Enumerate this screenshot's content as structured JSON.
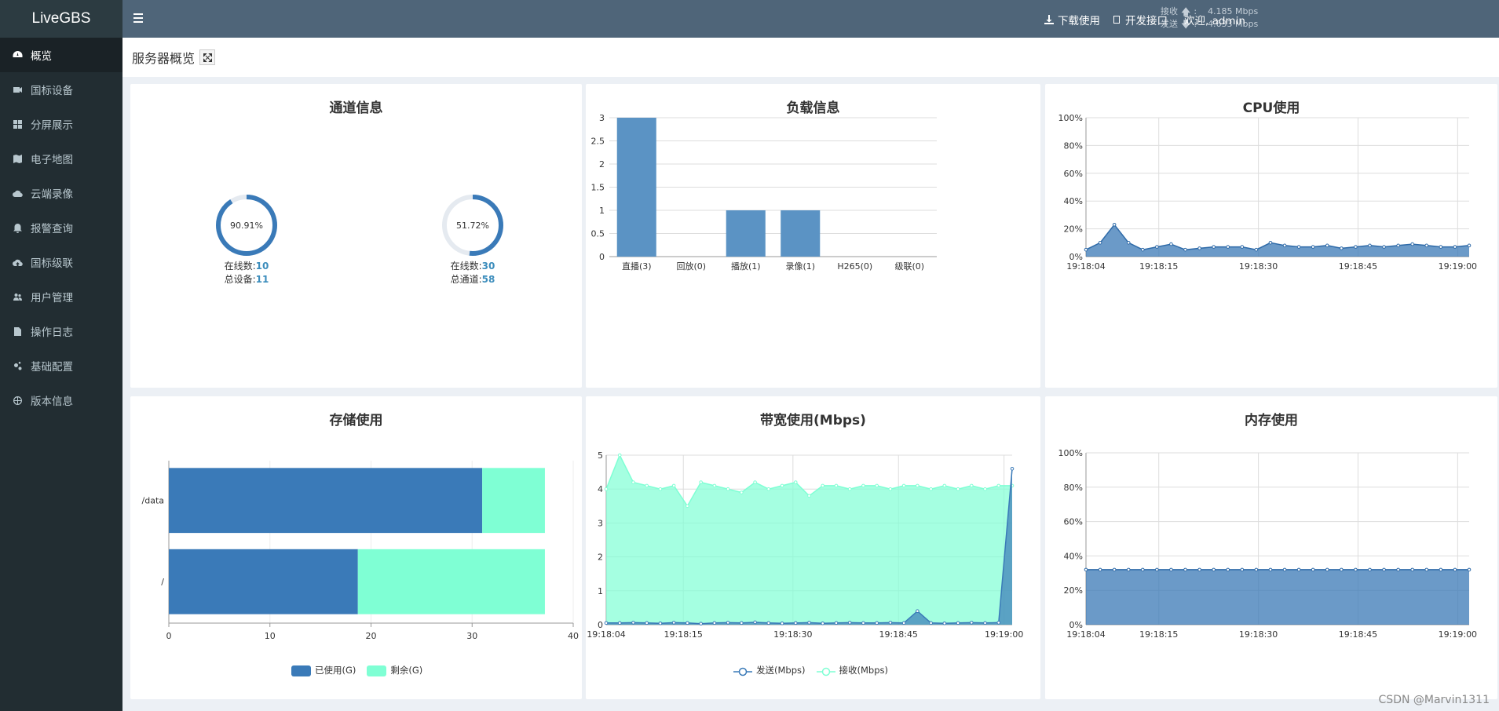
{
  "app": {
    "name": "LiveGBS"
  },
  "sidebar": {
    "items": [
      {
        "label": "概览",
        "icon": "dashboard-icon",
        "active": true
      },
      {
        "label": "国标设备",
        "icon": "video-camera-icon"
      },
      {
        "label": "分屏展示",
        "icon": "grid-icon"
      },
      {
        "label": "电子地图",
        "icon": "map-icon"
      },
      {
        "label": "云端录像",
        "icon": "cloud-icon"
      },
      {
        "label": "报警查询",
        "icon": "bell-icon"
      },
      {
        "label": "国标级联",
        "icon": "cloud-upload-icon"
      },
      {
        "label": "用户管理",
        "icon": "users-icon"
      },
      {
        "label": "操作日志",
        "icon": "file-icon"
      },
      {
        "label": "基础配置",
        "icon": "cogs-icon"
      },
      {
        "label": "版本信息",
        "icon": "globe-icon"
      }
    ]
  },
  "header": {
    "recv_label": "接收",
    "recv_value": "4.185 Mbps",
    "send_label": "发送",
    "send_value": "4.633 Mbps",
    "download": "下载使用",
    "api": "开发接口",
    "welcome": "欢迎, admin"
  },
  "page": {
    "title": "服务器概览"
  },
  "panels": {
    "channel": {
      "title": "通道信息",
      "gauges": [
        {
          "percent": "90.91%",
          "ratio": 0.9091,
          "online_label": "在线数:",
          "online": "10",
          "total_label": "总设备:",
          "total": "11"
        },
        {
          "percent": "51.72%",
          "ratio": 0.5172,
          "online_label": "在线数:",
          "online": "30",
          "total_label": "总通道:",
          "total": "58"
        }
      ]
    },
    "load": {
      "title": "负载信息"
    },
    "cpu": {
      "title": "CPU使用"
    },
    "storage": {
      "title": "存储使用"
    },
    "bandwidth": {
      "title": "带宽使用(Mbps)"
    },
    "memory": {
      "title": "内存使用"
    }
  },
  "chart_data": [
    {
      "id": "load",
      "type": "bar",
      "categories": [
        "直播(3)",
        "回放(0)",
        "播放(1)",
        "录像(1)",
        "H265(0)",
        "级联(0)"
      ],
      "values": [
        3,
        0,
        1,
        1,
        0,
        0
      ],
      "ylim": [
        0,
        3
      ],
      "yticks": [
        "0",
        "0.5",
        "1",
        "1.5",
        "2",
        "2.5",
        "3"
      ],
      "color": "#5b93c4",
      "grid": true
    },
    {
      "id": "cpu",
      "type": "area",
      "xticks": [
        "19:18:04",
        "19:18:15",
        "19:18:30",
        "19:18:45",
        "19:19:00"
      ],
      "yticks": [
        "0%",
        "20%",
        "40%",
        "60%",
        "80%",
        "100%"
      ],
      "ylim": [
        0,
        100
      ],
      "values": [
        5,
        10,
        23,
        10,
        5,
        7,
        9,
        5,
        6,
        7,
        7,
        7,
        5,
        10,
        8,
        7,
        7,
        8,
        6,
        7,
        8,
        7,
        8,
        9,
        8,
        7,
        7,
        8
      ],
      "color": "#3a78b5",
      "grid": true
    },
    {
      "id": "storage",
      "type": "bar",
      "orientation": "horizontal",
      "stacked": true,
      "categories": [
        "/data",
        "/"
      ],
      "series": [
        {
          "name": "已使用(G)",
          "values": [
            31,
            18.7
          ],
          "color": "#3a7ab8"
        },
        {
          "name": "剩余(G)",
          "values": [
            6.2,
            18.5
          ],
          "color": "#7fffd4"
        }
      ],
      "xticks": [
        "0",
        "10",
        "20",
        "30",
        "40"
      ],
      "xlim": [
        0,
        40
      ],
      "legend": "bottom"
    },
    {
      "id": "bandwidth",
      "type": "area",
      "xticks": [
        "19:18:04",
        "19:18:15",
        "19:18:30",
        "19:18:45",
        "19:19:00"
      ],
      "yticks": [
        "0",
        "1",
        "2",
        "3",
        "4",
        "5"
      ],
      "ylim": [
        0,
        5
      ],
      "series": [
        {
          "name": "发送(Mbps)",
          "color": "#3a7ab8",
          "values": [
            0.05,
            0.05,
            0.06,
            0.05,
            0.04,
            0.06,
            0.05,
            0.03,
            0.05,
            0.06,
            0.05,
            0.07,
            0.05,
            0.04,
            0.05,
            0.06,
            0.04,
            0.05,
            0.06,
            0.05,
            0.05,
            0.06,
            0.05,
            0.4,
            0.05,
            0.04,
            0.05,
            0.06,
            0.05,
            0.06,
            4.6
          ]
        },
        {
          "name": "接收(Mbps)",
          "color": "#7fffd4",
          "values": [
            4.0,
            5.0,
            4.2,
            4.1,
            4.0,
            4.1,
            3.5,
            4.2,
            4.1,
            4.0,
            3.9,
            4.2,
            4.0,
            4.1,
            4.2,
            3.8,
            4.1,
            4.1,
            4.0,
            4.1,
            4.1,
            4.0,
            4.1,
            4.1,
            4.0,
            4.1,
            4.0,
            4.1,
            4.0,
            4.1,
            4.1
          ]
        }
      ],
      "legend": "bottom"
    },
    {
      "id": "memory",
      "type": "area",
      "xticks": [
        "19:18:04",
        "19:18:15",
        "19:18:30",
        "19:18:45",
        "19:19:00"
      ],
      "yticks": [
        "0%",
        "20%",
        "40%",
        "60%",
        "80%",
        "100%"
      ],
      "ylim": [
        0,
        100
      ],
      "values": [
        32,
        32,
        32,
        32,
        32,
        32,
        32,
        32,
        32,
        32,
        32,
        32,
        32,
        32,
        32,
        32,
        32,
        32,
        32,
        32,
        32,
        32,
        32,
        32,
        32,
        32,
        32,
        32
      ],
      "color": "#3a78b5",
      "grid": true
    }
  ],
  "watermark": "CSDN @Marvin1311"
}
